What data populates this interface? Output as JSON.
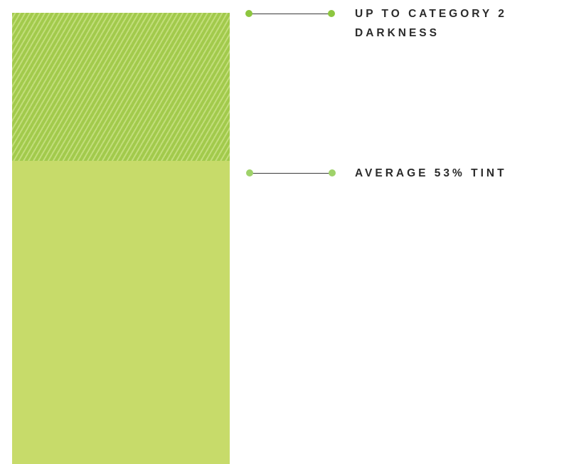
{
  "colors": {
    "hatched_bar": "#a2ca4c",
    "solid_bar": "#c7db6a",
    "connector_dot": "#8dc63f",
    "connector_line": "#3a3a3a",
    "label_text": "#2b2b2b"
  },
  "segments": [
    {
      "name": "hatched-segment",
      "pattern": "diagonal-stripes",
      "label_lines": [
        "UP TO CATEGORY 2",
        "DARKNESS"
      ]
    },
    {
      "name": "solid-segment",
      "pattern": "solid",
      "label_lines": [
        "AVERAGE 53% TINT"
      ]
    }
  ]
}
